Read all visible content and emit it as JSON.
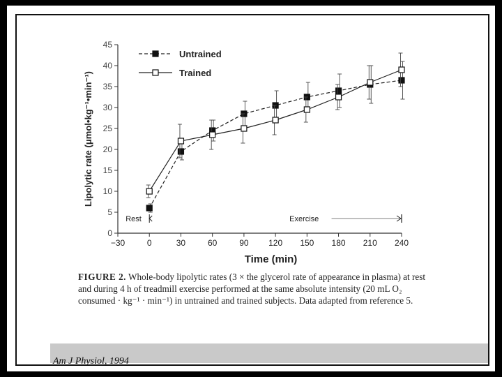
{
  "chart_data": {
    "type": "line",
    "xlabel": "Time (min)",
    "ylabel": "Lipolytic rate (μmol•kg⁻¹•min⁻¹)",
    "xlim": [
      -30,
      240
    ],
    "ylim": [
      0,
      45
    ],
    "xticks": [
      -30,
      0,
      30,
      60,
      90,
      120,
      150,
      180,
      210,
      240
    ],
    "yticks": [
      0,
      5,
      10,
      15,
      20,
      25,
      30,
      35,
      40,
      45
    ],
    "legend": "top-left",
    "series": [
      {
        "name": "Untrained",
        "marker": "filled-square",
        "x": [
          0,
          30,
          60,
          90,
          120,
          150,
          180,
          210,
          240
        ],
        "y": [
          6,
          19.5,
          24.5,
          28.5,
          30.5,
          32.5,
          34,
          35.5,
          36.5
        ],
        "err": [
          1,
          2,
          2.5,
          3,
          3.5,
          3.5,
          4,
          4.5,
          4.5
        ]
      },
      {
        "name": "Trained",
        "marker": "open-square",
        "x": [
          0,
          30,
          60,
          90,
          120,
          150,
          180,
          210,
          240
        ],
        "y": [
          10,
          22,
          23.5,
          25,
          27,
          29.5,
          32.5,
          36,
          39
        ],
        "err": [
          1.5,
          4,
          3.5,
          3.5,
          3.5,
          3,
          3,
          4,
          4
        ]
      }
    ],
    "annotations": {
      "rest": "Rest",
      "exercise": "Exercise"
    }
  },
  "caption": {
    "figure_label": "FIGURE 2.",
    "text": "Whole-body lipolytic rates (3 × the glycerol rate of appearance in plasma) at rest and during 4 h of treadmill exercise performed at the same absolute intensity (20 mL O₂ consumed · kg⁻¹ · min⁻¹) in untrained and trained subjects. Data adapted from reference 5."
  },
  "citation": "Am J Physiol, 1994"
}
